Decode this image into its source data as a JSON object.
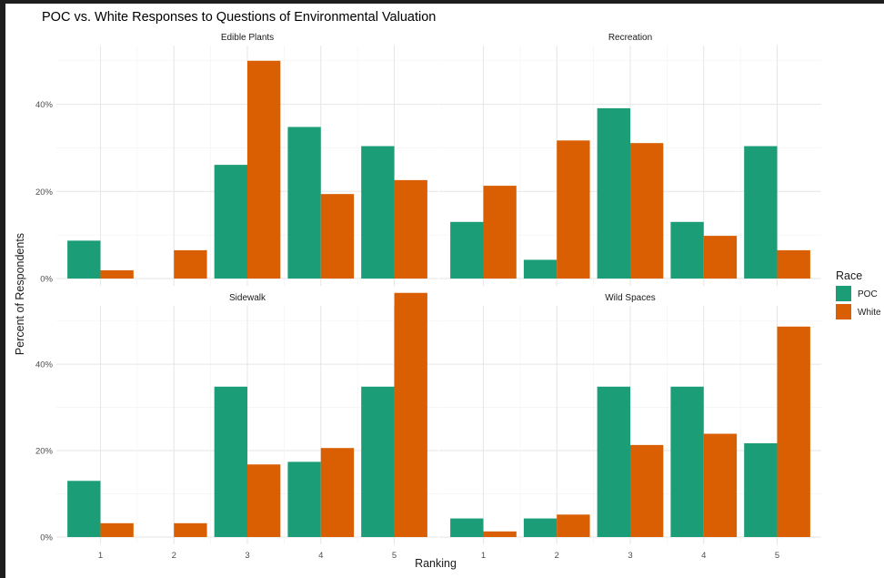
{
  "chart_data": {
    "type": "bar",
    "title": "POC vs. White Responses to Questions of Environmental Valuation",
    "xlabel": "Ranking",
    "ylabel": "Percent of Respondents",
    "categories": [
      "1",
      "2",
      "3",
      "4",
      "5"
    ],
    "ylim": [
      0,
      0.5
    ],
    "y_ticks": [
      0,
      0.2,
      0.4
    ],
    "y_tick_labels": [
      "0%",
      "20%",
      "40%"
    ],
    "grid": true,
    "legend": {
      "title": "Race",
      "position": "right",
      "items": [
        {
          "name": "POC",
          "color": "#1b9e77"
        },
        {
          "name": "White",
          "color": "#d95f02"
        }
      ]
    },
    "facets": [
      {
        "name": "Edible Plants",
        "series": [
          {
            "name": "POC",
            "values": [
              0.087,
              0.0,
              0.261,
              0.348,
              0.304
            ]
          },
          {
            "name": "White",
            "values": [
              0.019,
              0.065,
              0.5,
              0.194,
              0.226
            ]
          }
        ]
      },
      {
        "name": "Recreation",
        "series": [
          {
            "name": "POC",
            "values": [
              0.13,
              0.043,
              0.391,
              0.13,
              0.304
            ]
          },
          {
            "name": "White",
            "values": [
              0.213,
              0.317,
              0.311,
              0.098,
              0.065
            ]
          }
        ]
      },
      {
        "name": "Sidewalk",
        "series": [
          {
            "name": "POC",
            "values": [
              0.13,
              0.0,
              0.348,
              0.174,
              0.348
            ]
          },
          {
            "name": "White",
            "values": [
              0.032,
              0.032,
              0.168,
              0.206,
              0.565
            ]
          }
        ]
      },
      {
        "name": "Wild Spaces",
        "series": [
          {
            "name": "POC",
            "values": [
              0.043,
              0.043,
              0.348,
              0.348,
              0.217
            ]
          },
          {
            "name": "White",
            "values": [
              0.013,
              0.052,
              0.213,
              0.239,
              0.487
            ]
          }
        ]
      }
    ]
  }
}
